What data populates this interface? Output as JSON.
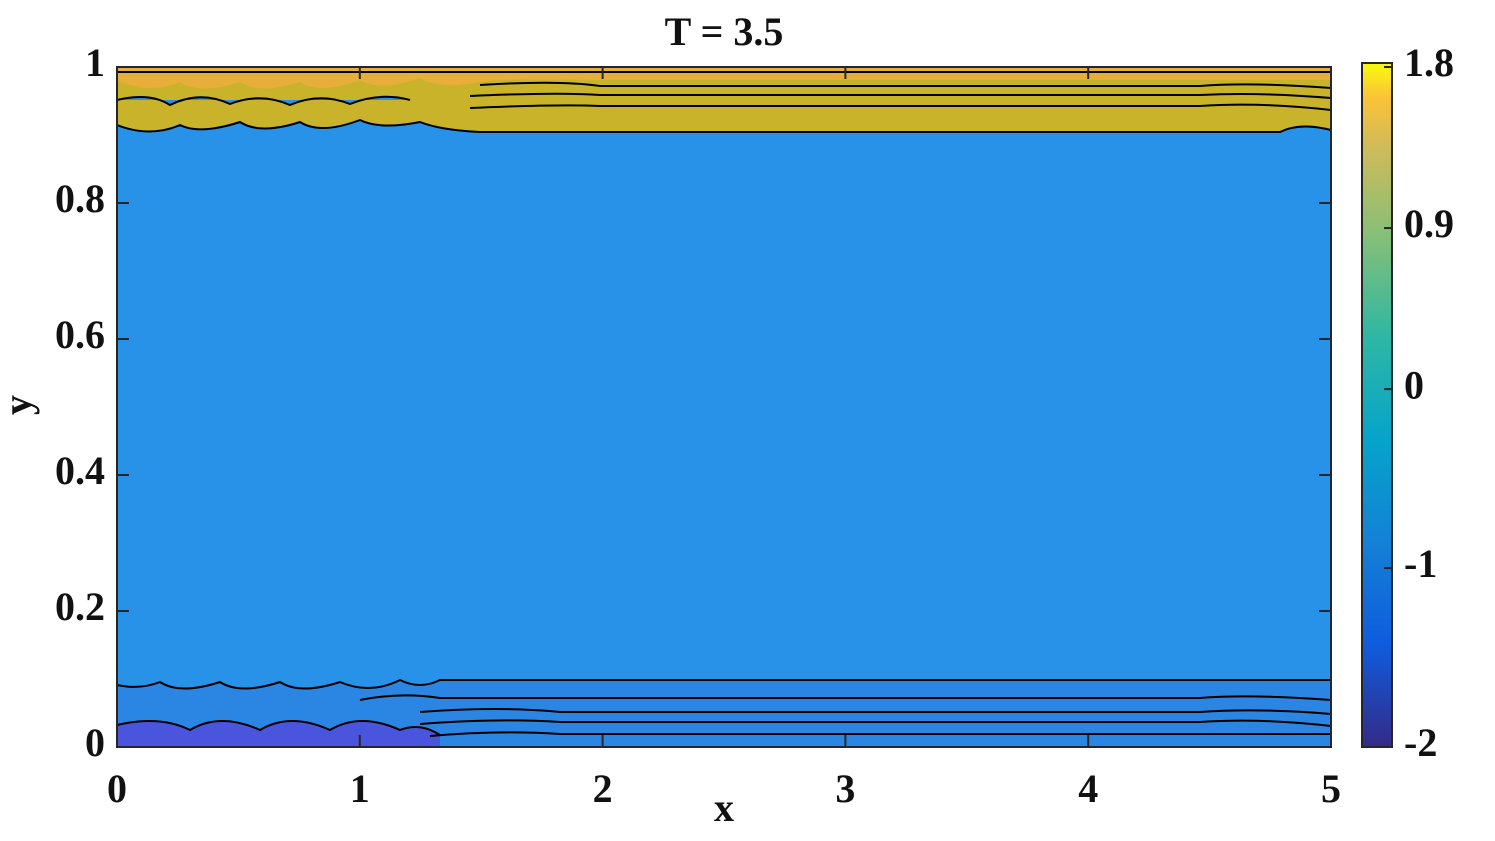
{
  "chart_data": {
    "type": "contour",
    "title": "T = 3.5",
    "xlabel": "x",
    "ylabel": "y",
    "xlim": [
      0,
      5
    ],
    "xticks": [
      0,
      1,
      2,
      3,
      4,
      5
    ],
    "ylim": [
      0,
      1
    ],
    "yticks": [
      0,
      0.2,
      0.4,
      0.6,
      0.8,
      1
    ],
    "colorbar": {
      "lim": [
        -2,
        1.8
      ],
      "ticks": [
        -2,
        -1,
        0,
        0.9,
        1.8
      ]
    }
  }
}
